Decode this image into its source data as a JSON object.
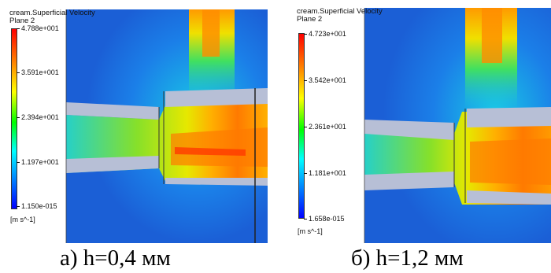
{
  "panel_a": {
    "title": "cream.Superficial Velocity",
    "plane": "Plane 2",
    "legend_ticks": [
      "4.788e+001",
      "3.591e+001",
      "2.394e+001",
      "1.197e+001",
      "1.150e-015"
    ],
    "unit": "[m s^-1]"
  },
  "panel_b": {
    "title": "cream.Superficial Velocity",
    "plane": "Plane 2",
    "legend_ticks": [
      "4.723e+001",
      "3.542e+001",
      "2.361e+001",
      "1.181e+001",
      "1.658e-015"
    ],
    "unit": "[m s^-1]"
  },
  "captions": {
    "a": "а) h=0,4 мм",
    "b": "б) h=1,2 мм"
  },
  "colors": {
    "background_field": "#1f6fe0",
    "nozzle_gray": "#b7bfd6",
    "legend_top": "#ff0000",
    "legend_bottom": "#0000ff"
  }
}
